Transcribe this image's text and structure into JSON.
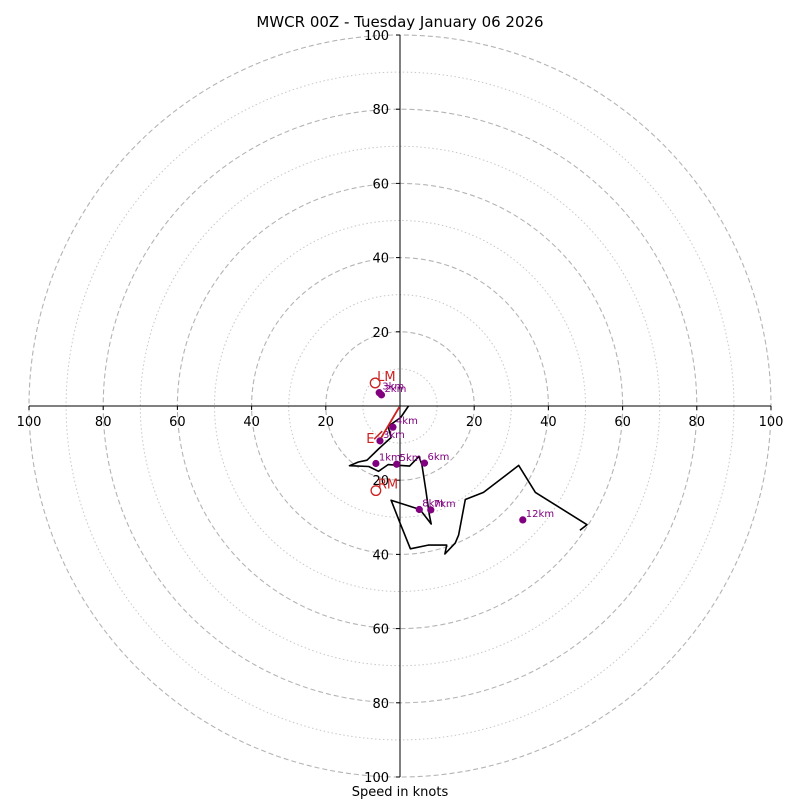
{
  "chart_data": {
    "type": "hodograph",
    "title": "MWCR 00Z - Tuesday January 06 2026",
    "xlabel": "Speed in knots",
    "units": "knots",
    "xlim": [
      -100,
      100
    ],
    "ylim": [
      -100,
      100
    ],
    "rings_major": [
      20,
      40,
      60,
      80,
      100
    ],
    "rings_minor": [
      10,
      30,
      50,
      70,
      90
    ],
    "x_ticks": [
      {
        "value": -100,
        "label": "100"
      },
      {
        "value": -80,
        "label": "80"
      },
      {
        "value": -60,
        "label": "60"
      },
      {
        "value": -40,
        "label": "40"
      },
      {
        "value": -20,
        "label": "20"
      },
      {
        "value": 20,
        "label": "20"
      },
      {
        "value": 40,
        "label": "40"
      },
      {
        "value": 60,
        "label": "60"
      },
      {
        "value": 80,
        "label": "80"
      },
      {
        "value": 100,
        "label": "100"
      }
    ],
    "y_ticks": [
      {
        "value": 100,
        "label": "100"
      },
      {
        "value": 80,
        "label": "80"
      },
      {
        "value": 60,
        "label": "60"
      },
      {
        "value": 40,
        "label": "40"
      },
      {
        "value": 20,
        "label": "20"
      },
      {
        "value": -20,
        "label": "20"
      },
      {
        "value": -40,
        "label": "40"
      },
      {
        "value": -60,
        "label": "60"
      },
      {
        "value": -80,
        "label": "80"
      },
      {
        "value": -100,
        "label": "100"
      }
    ],
    "trace": {
      "color": "#000000",
      "points": [
        [
          2.3,
          0.0
        ],
        [
          0.2,
          -3.1
        ],
        [
          -3.2,
          -5.5
        ],
        [
          -2.4,
          -8.5
        ],
        [
          -5.8,
          -11.6
        ],
        [
          -8.9,
          -14.6
        ],
        [
          -11.2,
          -15.1
        ],
        [
          -13.6,
          -16.1
        ],
        [
          -8.4,
          -16.3
        ],
        [
          -5.8,
          -17.6
        ],
        [
          -3.2,
          -15.8
        ],
        [
          2.6,
          -16.2
        ],
        [
          5.1,
          -13.6
        ],
        [
          5.9,
          -15.8
        ],
        [
          7.0,
          -23.0
        ],
        [
          7.9,
          -29.3
        ],
        [
          8.4,
          -31.8
        ],
        [
          5.4,
          -27.9
        ],
        [
          -2.4,
          -25.4
        ],
        [
          -2.4,
          -25.4
        ],
        [
          0.2,
          -32.0
        ],
        [
          2.8,
          -38.5
        ],
        [
          7.6,
          -37.5
        ],
        [
          12.4,
          -37.5
        ],
        [
          12.6,
          -37.5
        ],
        [
          12.1,
          -39.9
        ],
        [
          14.9,
          -36.9
        ],
        [
          15.8,
          -34.8
        ],
        [
          17.6,
          -25.2
        ],
        [
          22.5,
          -23.3
        ],
        [
          32.0,
          -16.0
        ],
        [
          36.5,
          -23.3
        ],
        [
          50.4,
          -32.0
        ],
        [
          48.5,
          -33.5
        ]
      ]
    },
    "height_markers": [
      {
        "label": "1km",
        "u": -6.5,
        "v": -15.5
      },
      {
        "label": "3km",
        "u": -5.4,
        "v": -9.4
      },
      {
        "label": "4km",
        "u": -1.9,
        "v": -5.7
      },
      {
        "label": "2km",
        "u": -5.0,
        "v": 3.0
      },
      {
        "label": "3km",
        "u": -5.6,
        "v": 3.6
      },
      {
        "label": "5km",
        "u": -0.9,
        "v": -15.7
      },
      {
        "label": "6km",
        "u": 6.6,
        "v": -15.4
      },
      {
        "label": "7km",
        "u": 8.3,
        "v": -28.0
      },
      {
        "label": "8km",
        "u": 5.2,
        "v": -27.9
      },
      {
        "label": "12km",
        "u": 33.1,
        "v": -30.7
      }
    ],
    "height_marker_color": "#800080",
    "storm_motion": {
      "color": "#cc2222",
      "left_mover": {
        "label": "LM",
        "u": -6.7,
        "v": 6.2
      },
      "right_mover": {
        "label": "RM",
        "u": -6.5,
        "v": -22.8
      },
      "mean_wind": {
        "u": -4.8,
        "v": -6.8
      },
      "bunkers_line_label": "E",
      "shear_vector": {
        "from": [
          -5.1,
          -8.6
        ],
        "to": [
          -0.2,
          -0.3
        ]
      }
    }
  }
}
